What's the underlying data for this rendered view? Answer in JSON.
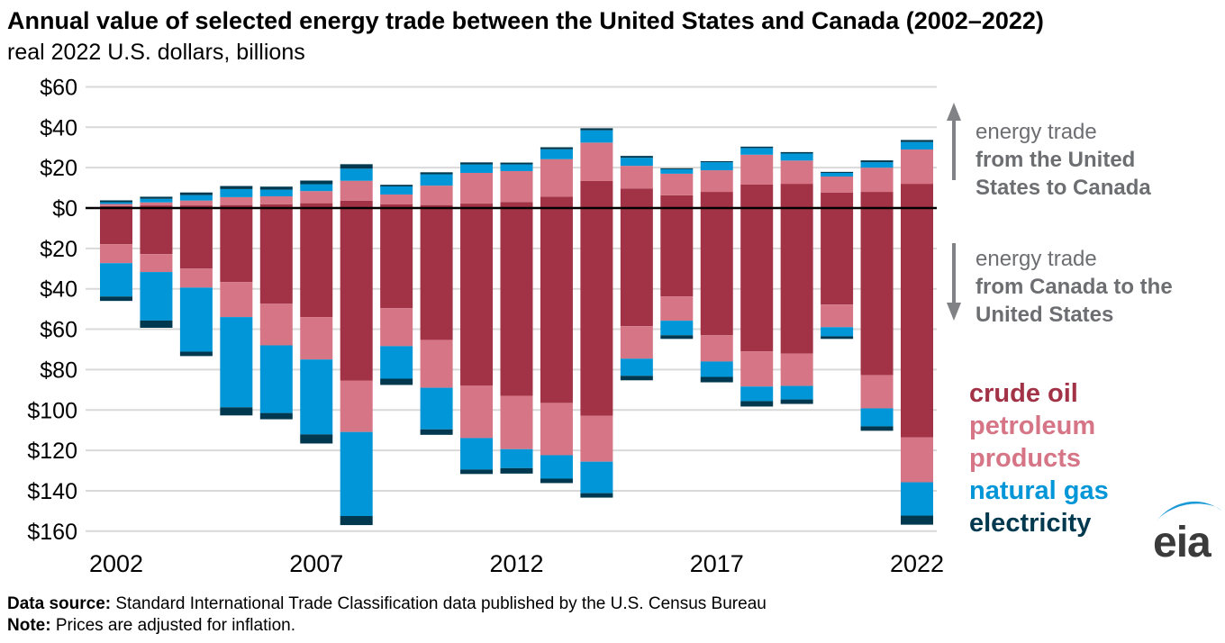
{
  "title": "Annual value of selected energy trade between the United States and Canada (2002–2022)",
  "subtitle": "real 2022 U.S. dollars, billions",
  "annotations": {
    "up_line1": "energy trade",
    "up_line2": "from the United States to Canada",
    "down_line1": "energy trade",
    "down_line2": "from Canada to the United States"
  },
  "legend": [
    {
      "label": "crude oil",
      "color": "#a23246"
    },
    {
      "label": "petroleum products",
      "color": "#d57586"
    },
    {
      "label": "natural gas",
      "color": "#0096d7"
    },
    {
      "label": "electricity",
      "color": "#00394f"
    }
  ],
  "footer": {
    "source_label": "Data source:",
    "source_text": " Standard International Trade Classification data published by the U.S. Census Bureau",
    "note_label": "Note:",
    "note_text": " Prices are adjusted for inflation."
  },
  "logo_text": "eia",
  "chart_data": {
    "type": "bar",
    "stacked": true,
    "diverging": true,
    "unit": "billion real 2022 U.S. dollars",
    "categories": [
      2002,
      2003,
      2004,
      2005,
      2006,
      2007,
      2008,
      2009,
      2010,
      2011,
      2012,
      2013,
      2014,
      2015,
      2016,
      2017,
      2018,
      2019,
      2020,
      2021,
      2022
    ],
    "x_ticks": [
      "2002",
      "2007",
      "2012",
      "2017",
      "2022"
    ],
    "y_ticks": [
      {
        "label": "$60",
        "value": 60
      },
      {
        "label": "$40",
        "value": 40
      },
      {
        "label": "$20",
        "value": 20
      },
      {
        "label": "$0",
        "value": 0
      },
      {
        "label": "$20",
        "value": -20
      },
      {
        "label": "$40",
        "value": -40
      },
      {
        "label": "$60",
        "value": -60
      },
      {
        "label": "$80",
        "value": -80
      },
      {
        "label": "$100",
        "value": -100
      },
      {
        "label": "$120",
        "value": -120
      },
      {
        "label": "$140",
        "value": -140
      },
      {
        "label": "$160",
        "value": -160
      }
    ],
    "direction_up_label": "energy trade from the United States to Canada",
    "direction_down_label": "energy trade from Canada to the United States",
    "series": [
      {
        "name": "crude oil",
        "color": "#a23246",
        "us_to_canada": [
          1.0,
          1.3,
          1.3,
          1.5,
          1.9,
          2.4,
          3.6,
          1.8,
          1.5,
          2.2,
          3.0,
          5.6,
          13.4,
          9.7,
          6.3,
          8.0,
          11.6,
          12.0,
          7.6,
          8.0,
          12.0
        ],
        "canada_to_us": [
          17.9,
          22.8,
          30.0,
          36.6,
          47.4,
          54.0,
          85.4,
          49.6,
          65.3,
          88.0,
          93.0,
          96.5,
          102.8,
          58.5,
          43.8,
          63.0,
          71.0,
          72.0,
          47.8,
          82.7,
          113.5
        ]
      },
      {
        "name": "petroleum products",
        "color": "#d57586",
        "us_to_canada": [
          1.0,
          1.5,
          2.4,
          3.9,
          3.9,
          6.0,
          9.9,
          4.9,
          9.6,
          15.2,
          15.3,
          18.6,
          19.0,
          11.2,
          10.7,
          10.7,
          14.8,
          11.5,
          8.0,
          12.0,
          17.0
        ],
        "canada_to_us": [
          9.4,
          8.9,
          9.4,
          17.4,
          20.6,
          21.0,
          25.5,
          18.8,
          23.7,
          25.9,
          26.4,
          25.9,
          22.8,
          16.1,
          12.0,
          13.0,
          17.4,
          16.1,
          11.2,
          16.5,
          22.3
        ]
      },
      {
        "name": "natural gas",
        "color": "#0096d7",
        "us_to_canada": [
          0.9,
          1.8,
          2.7,
          4.0,
          3.3,
          3.4,
          6.0,
          4.0,
          5.6,
          4.2,
          3.3,
          4.9,
          6.1,
          4.0,
          2.2,
          4.0,
          3.3,
          3.5,
          1.8,
          2.7,
          3.7
        ],
        "canada_to_us": [
          16.5,
          24.0,
          31.7,
          44.7,
          33.5,
          37.1,
          41.6,
          16.1,
          20.6,
          15.6,
          9.4,
          11.6,
          15.6,
          8.5,
          7.2,
          7.6,
          7.2,
          6.7,
          4.5,
          8.9,
          16.5
        ]
      },
      {
        "name": "electricity",
        "color": "#00394f",
        "us_to_canada": [
          0.9,
          1.0,
          1.3,
          1.5,
          1.5,
          1.8,
          2.2,
          0.8,
          1.0,
          1.0,
          0.9,
          1.0,
          1.0,
          0.9,
          0.5,
          0.5,
          0.7,
          0.7,
          0.5,
          0.9,
          1.0
        ],
        "canada_to_us": [
          2.2,
          3.6,
          2.2,
          4.0,
          3.1,
          4.5,
          4.5,
          3.1,
          2.7,
          2.2,
          2.7,
          2.2,
          2.2,
          2.2,
          1.8,
          2.7,
          2.7,
          2.2,
          1.3,
          2.2,
          4.5
        ]
      }
    ],
    "grid": true,
    "legend_position": "right"
  }
}
